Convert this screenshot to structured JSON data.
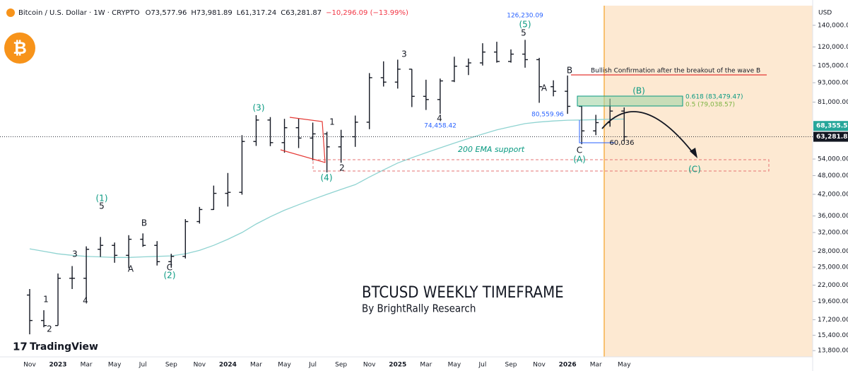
{
  "chart_data": {
    "type": "ohlc",
    "title": "Bitcoin / U.S. Dollar · 1W · CRYPTO",
    "header_values": [
      "O73,577.96",
      "H73,981.89",
      "L61,317.24",
      "C63,281.87",
      "−10,296.09 (−13.99%)"
    ],
    "currency": "USD",
    "brand": "TradingView",
    "categories": [
      "Nov",
      null,
      "2023",
      null,
      "Mar",
      null,
      "May",
      null,
      "Jul",
      null,
      "Sep",
      null,
      "Nov",
      null,
      "2024",
      null,
      "Mar",
      null,
      "May",
      null,
      "Jul",
      null,
      "Sep",
      null,
      "Nov",
      null,
      "2025",
      null,
      "Mar",
      null,
      "May",
      null,
      "Jul",
      null,
      "Sep",
      null,
      "Nov",
      null,
      "2026",
      null,
      "Mar",
      null,
      "May"
    ],
    "open": [
      20500,
      17100,
      16500,
      23100,
      23100,
      28400,
      29200,
      27200,
      30500,
      29200,
      26000,
      27000,
      34600,
      37700,
      42300,
      42600,
      61200,
      71300,
      60700,
      67500,
      62700,
      64600,
      58900,
      63300,
      70200,
      96400,
      93400,
      102400,
      84400,
      82500,
      94200,
      104600,
      107100,
      115700,
      108200,
      114000,
      109600,
      90400,
      87500,
      78600,
      66000,
      70000,
      76000
    ],
    "high": [
      21400,
      18400,
      23900,
      25200,
      29000,
      31000,
      29800,
      31400,
      31800,
      30100,
      27500,
      35200,
      38400,
      44700,
      48900,
      64000,
      73800,
      72800,
      71900,
      72000,
      70000,
      65600,
      66500,
      73600,
      99600,
      108300,
      109600,
      102500,
      95000,
      95800,
      111900,
      110500,
      123200,
      124500,
      117900,
      126200,
      111000,
      94600,
      97900,
      79000,
      74000,
      83000,
      78000
    ],
    "low": [
      15500,
      16300,
      16500,
      21400,
      19600,
      26900,
      25800,
      24800,
      28900,
      25300,
      24900,
      26600,
      34100,
      37600,
      38500,
      41900,
      59300,
      59200,
      56500,
      58400,
      53500,
      49100,
      52600,
      58900,
      66800,
      90500,
      89200,
      78200,
      76600,
      74500,
      93400,
      98200,
      105100,
      107300,
      107300,
      103500,
      80600,
      84400,
      74500,
      60000,
      64000,
      68000,
      61300
    ],
    "close": [
      17100,
      16500,
      23100,
      23100,
      28400,
      29200,
      27200,
      30500,
      29200,
      26000,
      27000,
      34600,
      37700,
      42300,
      42600,
      61200,
      71300,
      60700,
      67500,
      62700,
      64600,
      58900,
      63300,
      70200,
      96400,
      93400,
      102400,
      84400,
      82500,
      94200,
      104600,
      107100,
      115700,
      108200,
      114000,
      109600,
      90400,
      87500,
      78600,
      66000,
      70000,
      76000,
      63300
    ],
    "ema": {
      "name": "200 EMA",
      "color": "#8fd3d1",
      "values": [
        28500,
        28000,
        27500,
        27200,
        27000,
        26900,
        26800,
        26800,
        26900,
        27000,
        27100,
        27500,
        28200,
        29200,
        30500,
        32000,
        34000,
        35800,
        37500,
        39000,
        40500,
        42000,
        43500,
        45000,
        47500,
        50000,
        52500,
        54500,
        56500,
        58500,
        60500,
        62500,
        64500,
        66500,
        68000,
        69500,
        70300,
        70800,
        71200,
        71300,
        71500,
        71700,
        71800
      ]
    },
    "bar_color": "#131722",
    "log_scale": true,
    "ylim": [
      13200,
      161000
    ],
    "yticks": [
      {
        "value": 13800,
        "label": "13,800.00"
      },
      {
        "value": 15400,
        "label": "15,400.00"
      },
      {
        "value": 17200,
        "label": "17,200.00"
      },
      {
        "value": 19600,
        "label": "19,600.00"
      },
      {
        "value": 22000,
        "label": "22,000.00"
      },
      {
        "value": 25000,
        "label": "25,000.00"
      },
      {
        "value": 28000,
        "label": "28,000.00"
      },
      {
        "value": 32000,
        "label": "32,000.00"
      },
      {
        "value": 36000,
        "label": "36,000.00"
      },
      {
        "value": 42000,
        "label": "42,000.00"
      },
      {
        "value": 48000,
        "label": "48,000.00"
      },
      {
        "value": 54000,
        "label": "54,000.00"
      },
      {
        "value": 81000,
        "label": "81,000.00"
      },
      {
        "value": 93000,
        "label": "93,000.00"
      },
      {
        "value": 105000,
        "label": "105,000.00"
      },
      {
        "value": 120000,
        "label": "120,000.00"
      },
      {
        "value": 140000,
        "label": "140,000.00"
      }
    ],
    "price_tags": [
      {
        "value": 68355.58,
        "label": "68,355.58",
        "color": "#26a69a"
      },
      {
        "value": 63281.87,
        "label": "63,281.87",
        "color": "#131722"
      }
    ],
    "annotations": [
      {
        "text": "126,230.09",
        "color": "#2962ff"
      },
      {
        "text": "(5)",
        "color": "#089981"
      },
      {
        "text": "5",
        "color": "#131722"
      },
      {
        "text": "3",
        "color": "#131722"
      },
      {
        "text": "4",
        "color": "#131722"
      },
      {
        "text": "74,458.42",
        "color": "#2962ff"
      },
      {
        "text": "A",
        "color": "#131722"
      },
      {
        "text": "80,559.96",
        "color": "#2962ff"
      },
      {
        "text": "B",
        "color": "#131722"
      },
      {
        "text": "(3)",
        "color": "#089981"
      },
      {
        "text": "1",
        "color": "#131722"
      },
      {
        "text": "2",
        "color": "#131722"
      },
      {
        "text": "(4)",
        "color": "#089981"
      },
      {
        "text": "(1)",
        "color": "#089981"
      },
      {
        "text": "5",
        "color": "#131722"
      },
      {
        "text": "B",
        "color": "#131722"
      },
      {
        "text": "3",
        "color": "#131722"
      },
      {
        "text": "A",
        "color": "#131722"
      },
      {
        "text": "C",
        "color": "#131722"
      },
      {
        "text": "(2)",
        "color": "#089981"
      },
      {
        "text": "4",
        "color": "#131722"
      },
      {
        "text": "1",
        "color": "#131722"
      },
      {
        "text": "2",
        "color": "#131722"
      },
      {
        "text": "C",
        "color": "#131722"
      },
      {
        "text": "(A)",
        "color": "#089981"
      },
      {
        "text": "(B)",
        "color": "#089981"
      },
      {
        "text": "(C)",
        "color": "#089981"
      },
      {
        "text": "200 EMA support",
        "color": "#089981"
      },
      {
        "text": "60,036",
        "color": "#131722"
      },
      {
        "text": "Bullish Confirmation  after the breakout of the wave B",
        "color": "#131722"
      },
      {
        "text": "0.618 (83,479.47)",
        "color": "#089981"
      },
      {
        "text": "0.5 (79,038.57)",
        "color": "#7cb342"
      },
      {
        "text": "BTCUSD WEEKLY TIMEFRAME",
        "color": "#131722"
      },
      {
        "text": "By BrightRally Research",
        "color": "#131722"
      }
    ]
  }
}
